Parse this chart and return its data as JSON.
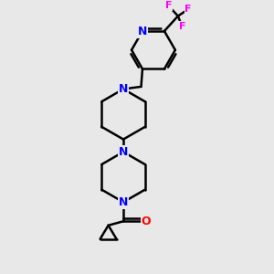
{
  "bg_color": "#e8e8e8",
  "bond_color": "#000000",
  "N_color": "#0000ff",
  "O_color": "#ff0000",
  "F_color": "#ff00ff",
  "line_width": 1.8,
  "font_size": 9,
  "fig_size": [
    3.0,
    3.0
  ],
  "dpi": 100,
  "xlim": [
    0,
    10
  ],
  "ylim": [
    0,
    10
  ]
}
